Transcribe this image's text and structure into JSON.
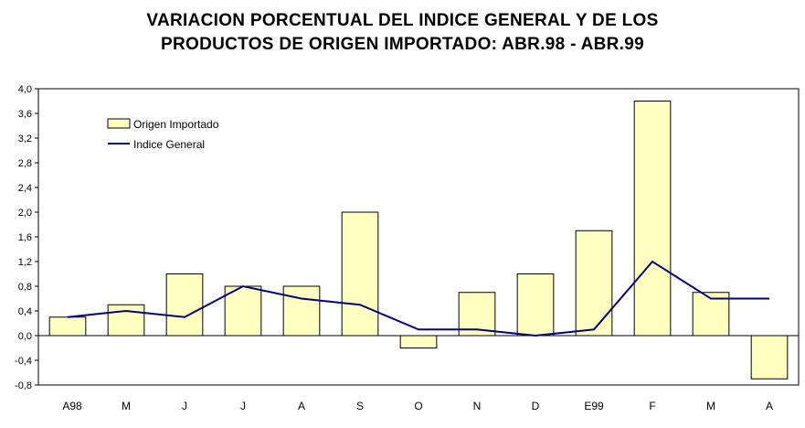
{
  "chart_data": {
    "type": "bar",
    "title_line1": "VARIACION PORCENTUAL DEL INDICE GENERAL Y DE LOS",
    "title_line2": "PRODUCTOS DE ORIGEN IMPORTADO: ABR.98 - ABR.99",
    "categories": [
      "A98",
      "M",
      "J",
      "J",
      "A",
      "S",
      "O",
      "N",
      "D",
      "E99",
      "F",
      "M",
      "A"
    ],
    "series": [
      {
        "name": "Origen Importado",
        "kind": "bar",
        "color": "#FFFFC0",
        "values": [
          0.3,
          0.5,
          1.0,
          0.8,
          0.8,
          2.0,
          -0.2,
          0.7,
          1.0,
          1.7,
          3.8,
          0.7,
          -0.7
        ]
      },
      {
        "name": "Indice General",
        "kind": "line",
        "color": "#000080",
        "values": [
          0.3,
          0.4,
          0.3,
          0.8,
          0.6,
          0.5,
          0.1,
          0.1,
          0.0,
          0.1,
          1.2,
          0.6,
          0.6
        ]
      }
    ],
    "ylim": [
      -0.8,
      4.0
    ],
    "yticks": [
      "-0,8",
      "-0,4",
      "0,0",
      "0,4",
      "0,8",
      "1,2",
      "1,6",
      "2,0",
      "2,4",
      "2,8",
      "3,2",
      "3,6",
      "4,0"
    ],
    "legend": "top-left",
    "grid": false
  }
}
